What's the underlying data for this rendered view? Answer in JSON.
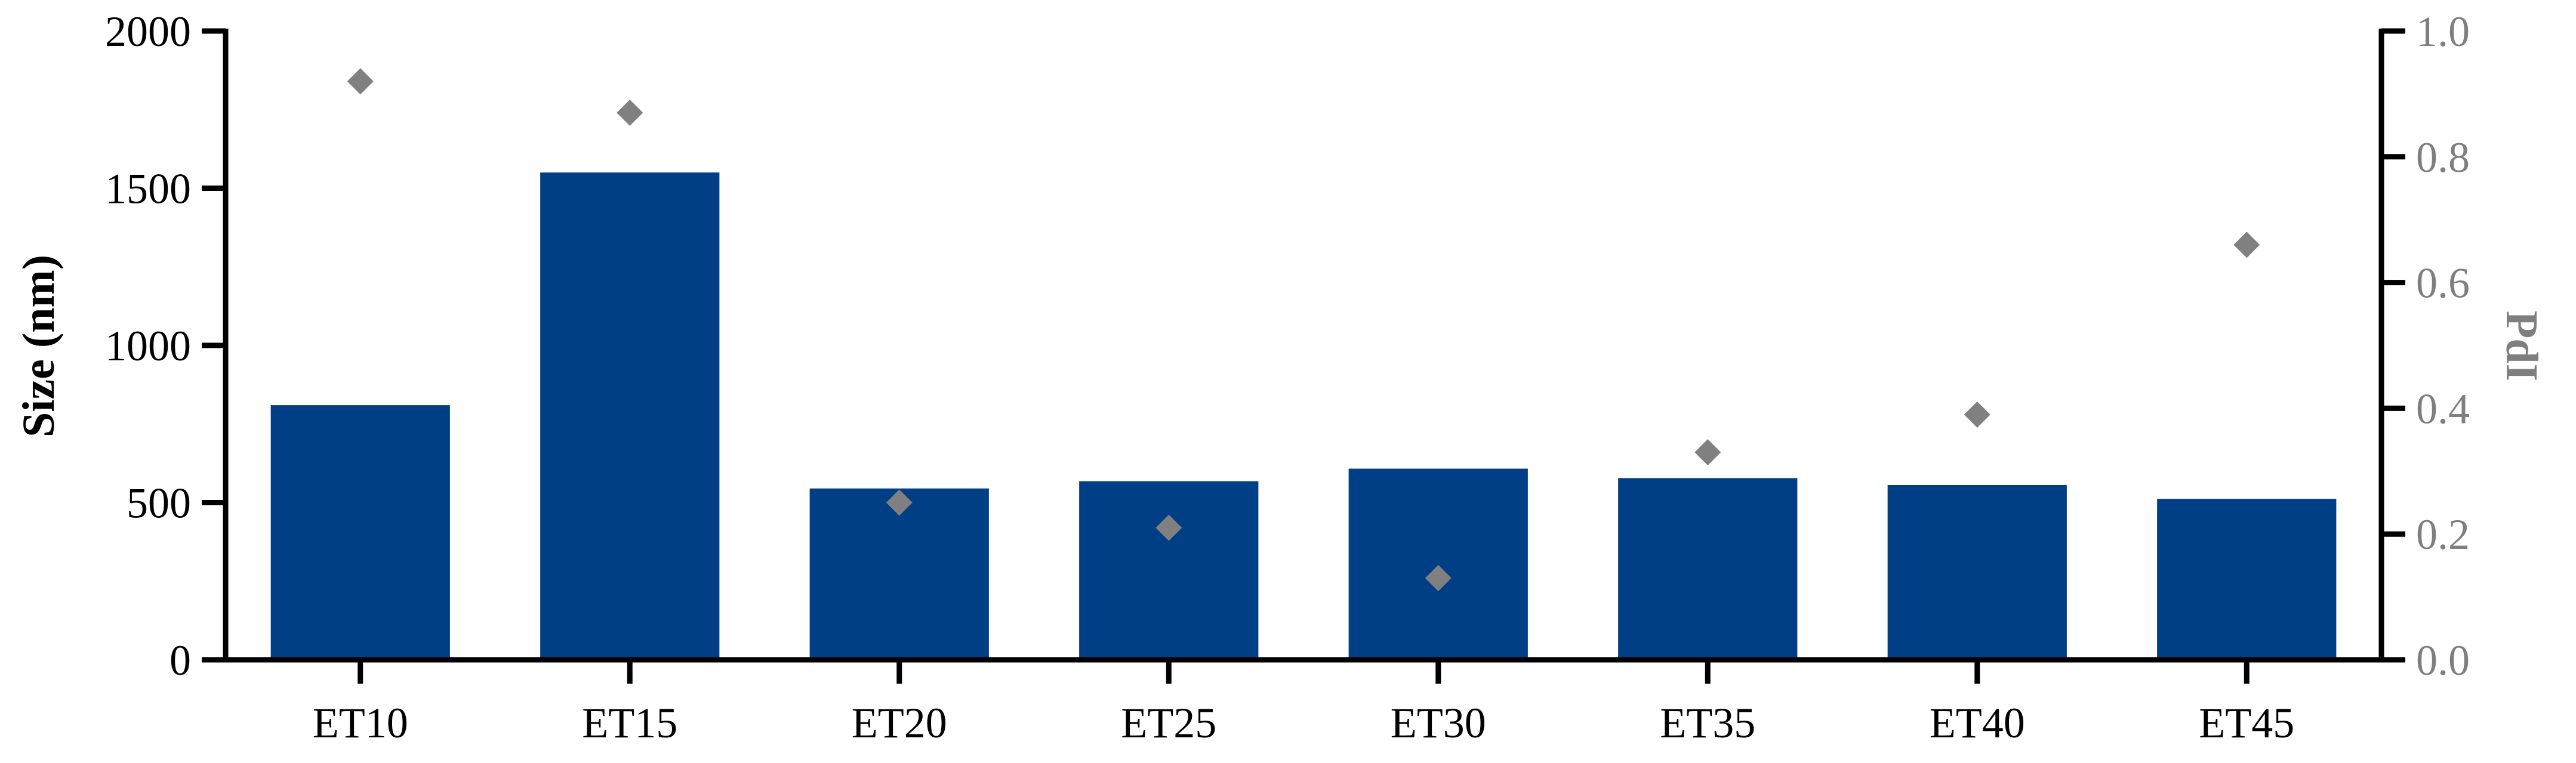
{
  "colors": {
    "bar": "#003f85",
    "marker": "#808080",
    "axis": "#000000",
    "right_label": "#7f7f7f"
  },
  "chart_data": {
    "type": "bar",
    "categories": [
      "ET10",
      "ET15",
      "ET20",
      "ET25",
      "ET30",
      "ET35",
      "ET40",
      "ET45"
    ],
    "series": [
      {
        "name": "Size (nm)",
        "type": "bar",
        "axis": "left",
        "values": [
          810,
          1550,
          545,
          568,
          608,
          578,
          556,
          512
        ]
      },
      {
        "name": "PdI",
        "type": "scatter",
        "axis": "right",
        "marker": "diamond",
        "values": [
          0.92,
          0.87,
          0.25,
          0.21,
          0.13,
          0.33,
          0.39,
          0.66
        ]
      }
    ],
    "title": "",
    "xlabel": "",
    "ylabel": "Size (nm)",
    "y2label": "PdI",
    "ylim": [
      0,
      2000
    ],
    "y2lim": [
      0.0,
      1.0
    ],
    "yticks": [
      "0",
      "500",
      "1000",
      "1500",
      "2000"
    ],
    "y2ticks": [
      "0.0",
      "0.2",
      "0.4",
      "0.6",
      "0.8",
      "1.0"
    ],
    "grid": false,
    "legend": "none"
  }
}
